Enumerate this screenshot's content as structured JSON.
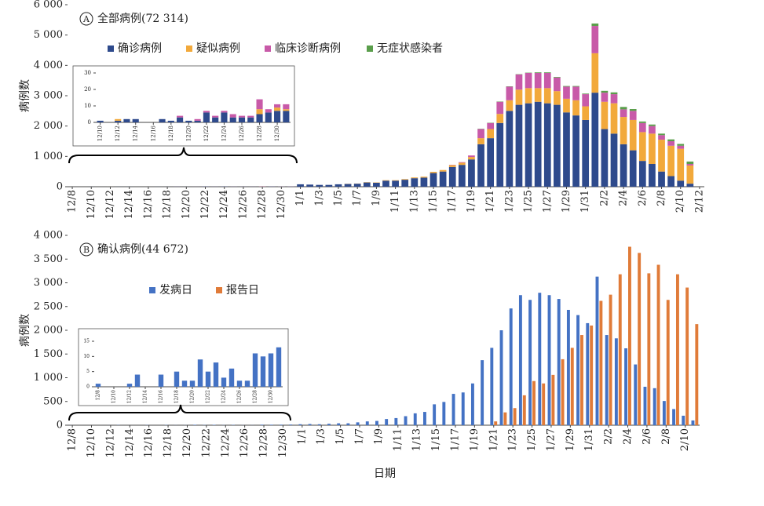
{
  "chart_data": [
    {
      "type": "bar",
      "stacked": true,
      "badge": "A",
      "title": "全部病例(72 314)",
      "ylabel": "病例数",
      "categories": [
        "12/8",
        null,
        "12/10",
        null,
        "12/12",
        null,
        "12/14",
        null,
        "12/16",
        null,
        "12/18",
        null,
        "12/20",
        null,
        "12/22",
        null,
        "12/24",
        null,
        "12/26",
        null,
        "12/28",
        null,
        "12/30",
        null,
        "1/1",
        null,
        "1/3",
        null,
        "1/5",
        null,
        "1/7",
        null,
        "1/9",
        null,
        "1/11",
        null,
        "1/13",
        null,
        "1/15",
        null,
        "1/17",
        null,
        "1/19",
        null,
        "1/21",
        null,
        "1/23",
        null,
        "1/25",
        null,
        "1/27",
        null,
        "1/29",
        null,
        "1/31",
        null,
        "2/2",
        null,
        "2/4",
        null,
        "2/6",
        null,
        "2/8",
        null,
        "2/10",
        null,
        "2/12"
      ],
      "series": [
        {
          "name": "确诊病例",
          "color": "#2e4a8c",
          "values": [
            0,
            0,
            1,
            0,
            1,
            2,
            2,
            0,
            0,
            2,
            1,
            3,
            1,
            1,
            6,
            3,
            6,
            3,
            3,
            3,
            5,
            6,
            7,
            7,
            80,
            70,
            60,
            60,
            80,
            90,
            100,
            140,
            130,
            200,
            200,
            230,
            280,
            300,
            450,
            500,
            650,
            720,
            900,
            1400,
            1600,
            2100,
            2500,
            2700,
            2750,
            2800,
            2750,
            2700,
            2450,
            2350,
            2200,
            3100,
            1900,
            1750,
            1400,
            1200,
            850,
            750,
            500,
            350,
            200,
            100,
            0
          ]
        },
        {
          "name": "疑似病例",
          "color": "#f2a93b",
          "values": [
            0,
            0,
            0,
            0,
            1,
            0,
            0,
            0,
            0,
            0,
            0,
            0,
            0,
            0,
            0,
            0,
            0,
            0,
            0,
            0,
            3,
            0,
            2,
            1,
            0,
            0,
            0,
            0,
            0,
            5,
            5,
            10,
            10,
            15,
            15,
            20,
            25,
            30,
            40,
            50,
            60,
            70,
            80,
            200,
            300,
            300,
            350,
            500,
            500,
            450,
            500,
            450,
            450,
            500,
            450,
            1300,
            900,
            1000,
            900,
            1000,
            950,
            1000,
            1050,
            1000,
            1050,
            600,
            0
          ]
        },
        {
          "name": "临床诊断病例",
          "color": "#c85aa8",
          "values": [
            0,
            0,
            0,
            0,
            0,
            0,
            0,
            0,
            0,
            0,
            0,
            1,
            0,
            1,
            1,
            1,
            1,
            2,
            1,
            1,
            6,
            2,
            2,
            3,
            0,
            0,
            0,
            0,
            0,
            0,
            0,
            0,
            0,
            0,
            0,
            0,
            0,
            0,
            0,
            0,
            10,
            20,
            50,
            300,
            200,
            400,
            450,
            500,
            500,
            500,
            500,
            450,
            400,
            450,
            400,
            900,
            300,
            300,
            250,
            300,
            300,
            250,
            150,
            150,
            100,
            50,
            0
          ]
        },
        {
          "name": "无症状感染者",
          "color": "#5a9e4b",
          "values": [
            0,
            0,
            0,
            0,
            0,
            0,
            0,
            0,
            0,
            0,
            0,
            0,
            0,
            0,
            0,
            0,
            0,
            0,
            0,
            0,
            0,
            0,
            0,
            0,
            0,
            0,
            0,
            0,
            0,
            0,
            0,
            0,
            0,
            0,
            0,
            0,
            0,
            0,
            0,
            0,
            0,
            0,
            0,
            10,
            10,
            10,
            10,
            10,
            10,
            20,
            20,
            20,
            20,
            20,
            20,
            80,
            60,
            60,
            80,
            60,
            50,
            50,
            50,
            60,
            60,
            80,
            0
          ]
        }
      ],
      "ylim": [
        0,
        6000
      ],
      "yticks": [
        {
          "value": 0,
          "label": "0"
        },
        {
          "value": 1000,
          "label": "1 000"
        },
        {
          "value": 2000,
          "label": "2 000"
        },
        {
          "value": 3000,
          "label": "3 000"
        },
        {
          "value": 4000,
          "label": "4 000"
        },
        {
          "value": 5000,
          "label": "5 000"
        },
        {
          "value": 6000,
          "label": "6 000"
        }
      ]
    },
    {
      "type": "bar",
      "stacked": true,
      "categories": [
        "12/10",
        null,
        "12/12",
        null,
        "12/14",
        null,
        "12/16",
        null,
        "12/18",
        null,
        "12/20",
        null,
        "12/22",
        null,
        "12/24",
        null,
        "12/26",
        null,
        "12/28",
        null,
        "12/30",
        null
      ],
      "series": [
        {
          "name": "确诊病例",
          "color": "#2e4a8c",
          "values": [
            1,
            0,
            1,
            2,
            2,
            0,
            0,
            2,
            1,
            3,
            1,
            1,
            6,
            3,
            6,
            3,
            3,
            3,
            5,
            6,
            7,
            7
          ]
        },
        {
          "name": "疑似病例",
          "color": "#f2a93b",
          "values": [
            0,
            0,
            1,
            0,
            0,
            0,
            0,
            0,
            0,
            0,
            0,
            0,
            0,
            0,
            0,
            0,
            0,
            0,
            3,
            0,
            2,
            1
          ]
        },
        {
          "name": "临床诊断病例",
          "color": "#c85aa8",
          "values": [
            0,
            0,
            0,
            0,
            0,
            0,
            0,
            0,
            0,
            1,
            0,
            1,
            1,
            1,
            1,
            2,
            1,
            1,
            6,
            2,
            2,
            3
          ]
        }
      ],
      "ylim": [
        0,
        30
      ],
      "yticks": [
        0,
        10,
        20,
        30
      ]
    },
    {
      "type": "bar",
      "stacked": false,
      "badge": "B",
      "title": "确认病例(44 672)",
      "ylabel": "病例数",
      "xlabel": "日期",
      "categories": [
        "12/8",
        null,
        "12/10",
        null,
        "12/12",
        null,
        "12/14",
        null,
        "12/16",
        null,
        "12/18",
        null,
        "12/20",
        null,
        "12/22",
        null,
        "12/24",
        null,
        "12/26",
        null,
        "12/28",
        null,
        "12/30",
        null,
        "1/1",
        null,
        "1/3",
        null,
        "1/5",
        null,
        "1/7",
        null,
        "1/9",
        null,
        "1/11",
        null,
        "1/13",
        null,
        "1/15",
        null,
        "1/17",
        null,
        "1/19",
        null,
        "1/21",
        null,
        "1/23",
        null,
        "1/25",
        null,
        "1/27",
        null,
        "1/29",
        null,
        "1/31",
        null,
        "2/2",
        null,
        "2/4",
        null,
        "2/6",
        null,
        "2/8",
        null,
        "2/10",
        null
      ],
      "series": [
        {
          "name": "发病日",
          "color": "#4472c4",
          "values": [
            1,
            0,
            0,
            0,
            1,
            4,
            0,
            0,
            4,
            0,
            5,
            2,
            2,
            9,
            5,
            8,
            3,
            6,
            2,
            2,
            11,
            10,
            11,
            13,
            20,
            25,
            20,
            30,
            40,
            40,
            60,
            80,
            90,
            130,
            150,
            190,
            250,
            280,
            440,
            490,
            660,
            690,
            880,
            1370,
            1630,
            2000,
            2460,
            2740,
            2640,
            2790,
            2740,
            2660,
            2430,
            2320,
            2150,
            3130,
            1900,
            1830,
            1620,
            1280,
            810,
            780,
            510,
            340,
            200,
            100
          ]
        },
        {
          "name": "报告日",
          "color": "#e07b39",
          "values": [
            0,
            0,
            0,
            0,
            0,
            0,
            0,
            0,
            0,
            0,
            0,
            0,
            0,
            0,
            0,
            0,
            0,
            0,
            0,
            0,
            0,
            0,
            0,
            0,
            0,
            0,
            0,
            0,
            0,
            0,
            0,
            0,
            0,
            0,
            0,
            0,
            0,
            0,
            0,
            0,
            0,
            0,
            0,
            0,
            80,
            270,
            360,
            630,
            930,
            880,
            1060,
            1390,
            1630,
            1900,
            2100,
            2620,
            2750,
            3180,
            3760,
            3630,
            3200,
            3380,
            2640,
            3180,
            2900,
            2130
          ]
        }
      ],
      "ylim": [
        0,
        4000
      ],
      "yticks": [
        {
          "value": 0,
          "label": "0"
        },
        {
          "value": 500,
          "label": "500"
        },
        {
          "value": 1000,
          "label": "1 000"
        },
        {
          "value": 1500,
          "label": "1 500"
        },
        {
          "value": 2000,
          "label": "2 000"
        },
        {
          "value": 2500,
          "label": "2 500"
        },
        {
          "value": 3000,
          "label": "3 000"
        },
        {
          "value": 3500,
          "label": "3 500"
        },
        {
          "value": 4000,
          "label": "4 000"
        }
      ]
    },
    {
      "type": "bar",
      "stacked": false,
      "categories": [
        "12/8",
        null,
        "12/10",
        null,
        "12/12",
        null,
        "12/14",
        null,
        "12/16",
        null,
        "12/18",
        null,
        "12/20",
        null,
        "12/22",
        null,
        "12/24",
        null,
        "12/26",
        null,
        "12/28",
        null,
        "12/30",
        null
      ],
      "series": [
        {
          "name": "发病日",
          "color": "#4472c4",
          "values": [
            1,
            0,
            0,
            0,
            1,
            4,
            0,
            0,
            4,
            0,
            5,
            2,
            2,
            9,
            5,
            8,
            3,
            6,
            2,
            2,
            11,
            10,
            11,
            13
          ]
        }
      ],
      "ylim": [
        0,
        15
      ],
      "yticks": [
        0,
        5,
        10,
        15
      ]
    }
  ]
}
